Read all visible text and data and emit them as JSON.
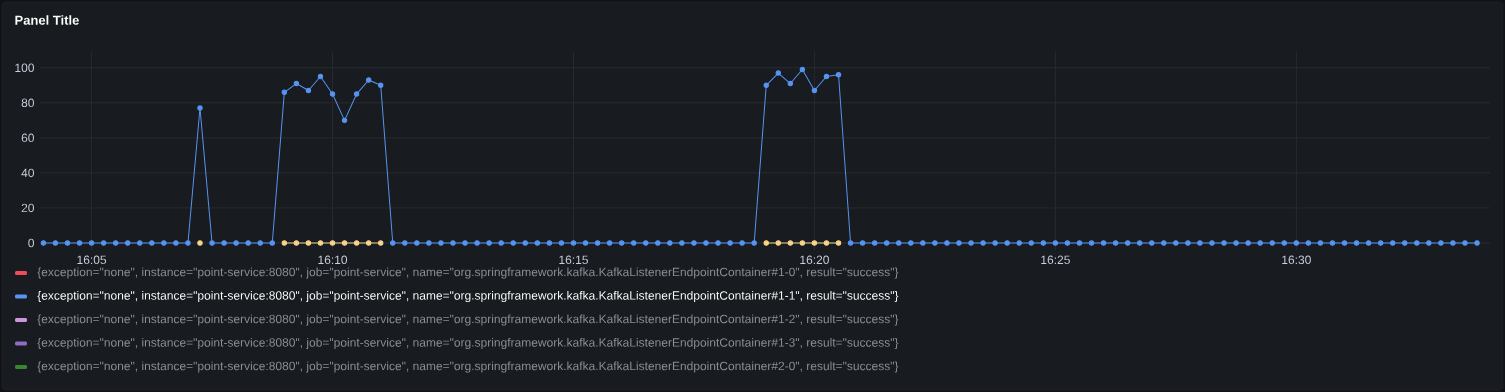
{
  "chart_data": {
    "type": "line",
    "title": "Panel Title",
    "x": [
      16.06667,
      16.07083,
      16.075,
      16.07917,
      16.08333,
      16.0875,
      16.09167,
      16.09583,
      16.1,
      16.10417,
      16.10833,
      16.1125,
      16.11667,
      16.12083,
      16.125,
      16.12917,
      16.13333,
      16.1375,
      16.14167,
      16.14583,
      16.15,
      16.15417,
      16.15833,
      16.1625,
      16.16667,
      16.17083,
      16.175,
      16.17917,
      16.18333,
      16.1875,
      16.19167,
      16.19583,
      16.2,
      16.20417,
      16.20833,
      16.2125,
      16.21667,
      16.22083,
      16.225,
      16.22917,
      16.23333,
      16.2375,
      16.24167,
      16.24583,
      16.25,
      16.25417,
      16.25833,
      16.2625,
      16.26667,
      16.27083,
      16.275,
      16.27917,
      16.28333,
      16.2875,
      16.29167,
      16.29583,
      16.3,
      16.30417,
      16.30833,
      16.3125,
      16.31667,
      16.32083,
      16.325,
      16.32917,
      16.33333,
      16.3375,
      16.34167,
      16.34583,
      16.35,
      16.35417,
      16.35833,
      16.3625,
      16.36667,
      16.37083,
      16.375,
      16.37917,
      16.38333,
      16.3875,
      16.39167,
      16.39583,
      16.4,
      16.40417,
      16.40833,
      16.4125,
      16.41667,
      16.42083,
      16.425,
      16.42917,
      16.43333,
      16.4375,
      16.44167,
      16.44583,
      16.45,
      16.45417,
      16.45833,
      16.4625,
      16.46667,
      16.47083,
      16.475,
      16.47917,
      16.48333,
      16.4875,
      16.49167,
      16.49583,
      16.5,
      16.50417,
      16.50833,
      16.5125,
      16.51667,
      16.52083,
      16.525,
      16.52917,
      16.53333,
      16.5375,
      16.54167,
      16.54583,
      16.55,
      16.55417,
      16.55833,
      16.5625
    ],
    "series": [
      {
        "name": "{exception=\"none\", instance=\"point-service:8080\", job=\"point-service\", name=\"org.springframework.kafka.KafkaListenerEndpointContainer#1-0\", result=\"success\"}",
        "color": "#f2495c",
        "values": [
          null,
          null,
          null,
          null,
          null,
          null,
          null,
          null,
          null,
          null,
          null,
          null,
          null,
          null,
          null,
          null,
          null,
          null,
          null,
          null,
          null,
          null,
          null,
          null,
          null,
          null,
          null,
          null,
          null,
          null,
          null,
          null,
          null,
          null,
          null,
          null,
          null,
          null,
          null,
          null,
          null,
          null,
          null,
          null,
          null,
          null,
          null,
          null,
          null,
          null,
          null,
          null,
          null,
          null,
          null,
          null,
          null,
          null,
          null,
          null,
          null,
          null,
          null,
          null,
          null,
          null,
          null,
          null,
          null,
          null,
          null,
          null,
          null,
          null,
          null,
          null,
          null,
          null,
          null,
          null,
          null,
          null,
          null,
          null,
          null,
          null,
          null,
          null,
          null,
          null,
          null,
          null,
          null,
          null,
          null,
          null,
          null,
          null,
          null,
          null,
          null,
          null,
          null,
          null,
          null,
          null,
          null,
          null,
          null,
          null,
          null,
          null,
          null,
          null,
          null,
          null,
          null,
          null,
          null,
          null
        ]
      },
      {
        "name": "{exception=\"none\", instance=\"point-service:8080\", job=\"point-service\", name=\"org.springframework.kafka.KafkaListenerEndpointContainer#1-1\", result=\"success\"}",
        "color": "#5794f2",
        "values": [
          0,
          0,
          0,
          0,
          0,
          0,
          0,
          0,
          0,
          0,
          0,
          0,
          0,
          77,
          0,
          0,
          0,
          0,
          0,
          0,
          86,
          91,
          87,
          95,
          85,
          70,
          85,
          93,
          90,
          0,
          0,
          0,
          0,
          0,
          0,
          0,
          0,
          0,
          0,
          0,
          0,
          0,
          0,
          0,
          0,
          0,
          0,
          0,
          0,
          0,
          0,
          0,
          0,
          0,
          0,
          0,
          0,
          0,
          0,
          0,
          90,
          97,
          91,
          99,
          87,
          95,
          96,
          0,
          0,
          0,
          0,
          0,
          0,
          0,
          0,
          0,
          0,
          0,
          0,
          0,
          0,
          0,
          0,
          0,
          0,
          0,
          0,
          0,
          0,
          0,
          0,
          0,
          0,
          0,
          0,
          0,
          0,
          0,
          0,
          0,
          0,
          0,
          0,
          0,
          0,
          0,
          0,
          0,
          0,
          0,
          0,
          0,
          0,
          0,
          0,
          0,
          0,
          0,
          0,
          0
        ]
      },
      {
        "name": "{exception=\"none\", instance=\"point-service:8080\", job=\"point-service\", name=\"org.springframework.kafka.KafkaListenerEndpointContainer#1-2\", result=\"success\"}",
        "color": "#ca95e5",
        "values": [
          null,
          null,
          null,
          null,
          null,
          null,
          null,
          null,
          null,
          null,
          null,
          null,
          null,
          null,
          null,
          null,
          null,
          null,
          null,
          null,
          null,
          null,
          null,
          null,
          null,
          null,
          null,
          null,
          null,
          null,
          null,
          null,
          null,
          null,
          null,
          null,
          null,
          null,
          null,
          null,
          null,
          null,
          null,
          null,
          null,
          null,
          null,
          null,
          null,
          null,
          null,
          null,
          null,
          null,
          null,
          null,
          null,
          null,
          null,
          null,
          null,
          null,
          null,
          null,
          null,
          null,
          null,
          null,
          null,
          null,
          null,
          null,
          null,
          null,
          null,
          null,
          null,
          null,
          null,
          null,
          null,
          null,
          null,
          null,
          null,
          null,
          null,
          null,
          null,
          null,
          null,
          null,
          null,
          null,
          null,
          null,
          null,
          null,
          null,
          null,
          null,
          null,
          null,
          null,
          null,
          null,
          null,
          null,
          null,
          null,
          null,
          null,
          null,
          null,
          null,
          null,
          null,
          null,
          null,
          null
        ]
      },
      {
        "name": "{exception=\"none\", instance=\"point-service:8080\", job=\"point-service\", name=\"org.springframework.kafka.KafkaListenerEndpointContainer#1-3\", result=\"success\"}",
        "color": "#8f6cc5",
        "values": [
          null,
          null,
          null,
          null,
          null,
          null,
          null,
          null,
          null,
          null,
          null,
          null,
          null,
          null,
          null,
          null,
          null,
          null,
          null,
          null,
          null,
          null,
          null,
          null,
          null,
          null,
          null,
          null,
          null,
          null,
          null,
          null,
          null,
          null,
          null,
          null,
          null,
          null,
          null,
          null,
          null,
          null,
          null,
          null,
          null,
          null,
          null,
          null,
          null,
          null,
          null,
          null,
          null,
          null,
          null,
          null,
          null,
          null,
          null,
          null,
          null,
          null,
          null,
          null,
          null,
          null,
          null,
          null,
          null,
          null,
          null,
          null,
          null,
          null,
          null,
          null,
          null,
          null,
          null,
          null,
          null,
          null,
          null,
          null,
          null,
          null,
          null,
          null,
          null,
          null,
          null,
          null,
          null,
          null,
          null,
          null,
          null,
          null,
          null,
          null,
          null,
          null,
          null,
          null,
          null,
          null,
          null,
          null,
          null,
          null,
          null,
          null,
          null,
          null,
          null,
          null,
          null,
          null,
          null,
          null
        ]
      },
      {
        "name": "{exception=\"none\", instance=\"point-service:8080\", job=\"point-service\", name=\"org.springframework.kafka.KafkaListenerEndpointContainer#2-0\", result=\"success\"}",
        "color": "#37872d",
        "values": [
          null,
          null,
          null,
          null,
          null,
          null,
          null,
          null,
          null,
          null,
          null,
          null,
          null,
          null,
          null,
          null,
          null,
          null,
          null,
          null,
          null,
          null,
          null,
          null,
          null,
          null,
          null,
          null,
          null,
          null,
          null,
          null,
          null,
          null,
          null,
          null,
          null,
          null,
          null,
          null,
          null,
          null,
          null,
          null,
          null,
          null,
          null,
          null,
          null,
          null,
          null,
          null,
          null,
          null,
          null,
          null,
          null,
          null,
          null,
          null,
          null,
          null,
          null,
          null,
          null,
          null,
          null,
          null,
          null,
          null,
          null,
          null,
          null,
          null,
          null,
          null,
          null,
          null,
          null,
          null,
          null,
          null,
          null,
          null,
          null,
          null,
          null,
          null,
          null,
          null,
          null,
          null,
          null,
          null,
          null,
          null,
          null,
          null,
          null,
          null,
          null,
          null,
          null,
          null,
          null,
          null,
          null,
          null,
          null,
          null,
          null,
          null,
          null,
          null,
          null,
          null,
          null,
          null,
          null,
          null
        ]
      },
      {
        "color": "#f8d48a",
        "values": [
          null,
          null,
          null,
          null,
          null,
          null,
          null,
          null,
          null,
          null,
          null,
          null,
          null,
          0,
          null,
          null,
          null,
          null,
          null,
          null,
          0,
          0,
          0,
          0,
          0,
          0,
          0,
          0,
          0,
          null,
          null,
          null,
          null,
          null,
          null,
          null,
          null,
          null,
          null,
          null,
          null,
          null,
          null,
          null,
          null,
          null,
          null,
          null,
          null,
          null,
          null,
          null,
          null,
          null,
          null,
          null,
          null,
          null,
          null,
          null,
          0,
          0,
          0,
          0,
          0,
          0,
          0,
          null,
          null,
          null,
          null,
          null,
          null,
          null,
          null,
          null,
          null,
          null,
          null,
          null,
          null,
          null,
          null,
          null,
          null,
          null,
          null,
          null,
          null,
          null,
          null,
          null,
          null,
          null,
          null,
          null,
          null,
          null,
          null,
          null,
          null,
          null,
          null,
          null,
          null,
          null,
          null,
          null,
          null,
          null,
          null,
          null,
          null,
          null,
          null,
          null,
          null,
          null,
          null,
          null
        ]
      }
    ],
    "xlim": [
      16.0655,
      16.567
    ],
    "xticks": [
      {
        "value": 16.08333,
        "label": "16:05"
      },
      {
        "value": 16.16667,
        "label": "16:10"
      },
      {
        "value": 16.25,
        "label": "16:15"
      },
      {
        "value": 16.33333,
        "label": "16:20"
      },
      {
        "value": 16.41667,
        "label": "16:25"
      },
      {
        "value": 16.5,
        "label": "16:30"
      }
    ],
    "ylim": [
      -4,
      109
    ],
    "yticks": [
      0,
      20,
      40,
      60,
      80,
      100
    ],
    "grid": true,
    "legend": "bottom",
    "marker": "circle",
    "line_style": "solid"
  }
}
